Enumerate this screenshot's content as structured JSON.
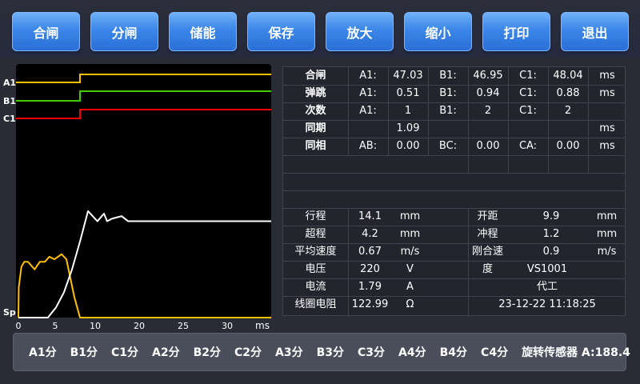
{
  "toolbar": {
    "buttons": [
      "合闸",
      "分闸",
      "储能",
      "保存",
      "放大",
      "缩小",
      "打印",
      "退出"
    ]
  },
  "chart_data": {
    "type": "line",
    "xlabel": "ms",
    "x_ticks": [
      0,
      5,
      10,
      20,
      25,
      30
    ],
    "channel_labels": [
      "A1",
      "B1",
      "C1",
      "Sp"
    ],
    "colors": {
      "A1": "#ffc000",
      "B1": "#44cc00",
      "C1": "#ff0000",
      "speed": "#ffffff",
      "coil": "#ffc000"
    },
    "steps": [
      {
        "name": "A1",
        "switch_ms": 8.1
      },
      {
        "name": "B1",
        "switch_ms": 8.1
      },
      {
        "name": "C1",
        "switch_ms": 8.1
      }
    ],
    "travel_curve": {
      "x": [
        0,
        4.0,
        5.1,
        6.1,
        7.1,
        8.1,
        9.1,
        10.5,
        12,
        12.7,
        13.8,
        16,
        17.5,
        35
      ],
      "y": [
        0,
        0,
        0.04,
        0.1,
        0.19,
        0.3,
        0.42,
        0.38,
        0.41,
        0.38,
        0.39,
        0.4,
        0.38,
        0.38
      ]
    },
    "coil_current": {
      "x": [
        0,
        0.05,
        0.1,
        0.4,
        0.8,
        1.3,
        2.2,
        2.9,
        3.6,
        4.2,
        4.9,
        5.8,
        6.4,
        6.8,
        7.4,
        8.1,
        35
      ],
      "y": [
        0,
        0.12,
        0.13,
        0.2,
        0.22,
        0.22,
        0.19,
        0.22,
        0.22,
        0.24,
        0.23,
        0.25,
        0.23,
        0.17,
        0.08,
        0,
        0
      ]
    }
  },
  "table": {
    "rows": [
      [
        "合闸",
        "A1:",
        "47.03",
        "B1:",
        "46.95",
        "C1:",
        "48.04",
        "ms"
      ],
      [
        "弹跳",
        "A1:",
        "0.51",
        "B1:",
        "0.94",
        "C1:",
        "0.88",
        "ms"
      ],
      [
        "次数",
        "A1:",
        "1",
        "B1:",
        "2",
        "C1:",
        "2",
        ""
      ],
      [
        "同期",
        "",
        "1.09",
        "",
        "",
        "",
        "",
        "ms"
      ],
      [
        "同相",
        "AB:",
        "0.00",
        "BC:",
        "0.00",
        "CA:",
        "0.00",
        "ms"
      ]
    ],
    "params": [
      [
        "行程",
        "14.1",
        "mm",
        "开距",
        "9.9",
        "mm"
      ],
      [
        "超程",
        "4.2",
        "mm",
        "冲程",
        "1.2",
        "mm"
      ],
      [
        "平均速度",
        "0.67",
        "m/s",
        "刚合速度",
        "0.9",
        "m/s"
      ]
    ],
    "info": [
      [
        "电压",
        "220",
        "V",
        "VS1001"
      ],
      [
        "电流",
        "1.79",
        "A",
        "代工"
      ],
      [
        "线圈电阻",
        "122.99",
        "Ω",
        "23-12-22 11:18:25"
      ]
    ]
  },
  "bottom": {
    "items": [
      "A1分",
      "B1分",
      "C1分",
      "A2分",
      "B2分",
      "C2分",
      "A3分",
      "B3分",
      "C3分",
      "A4分",
      "B4分",
      "C4分",
      "旋转传感器 A:188.4"
    ]
  }
}
